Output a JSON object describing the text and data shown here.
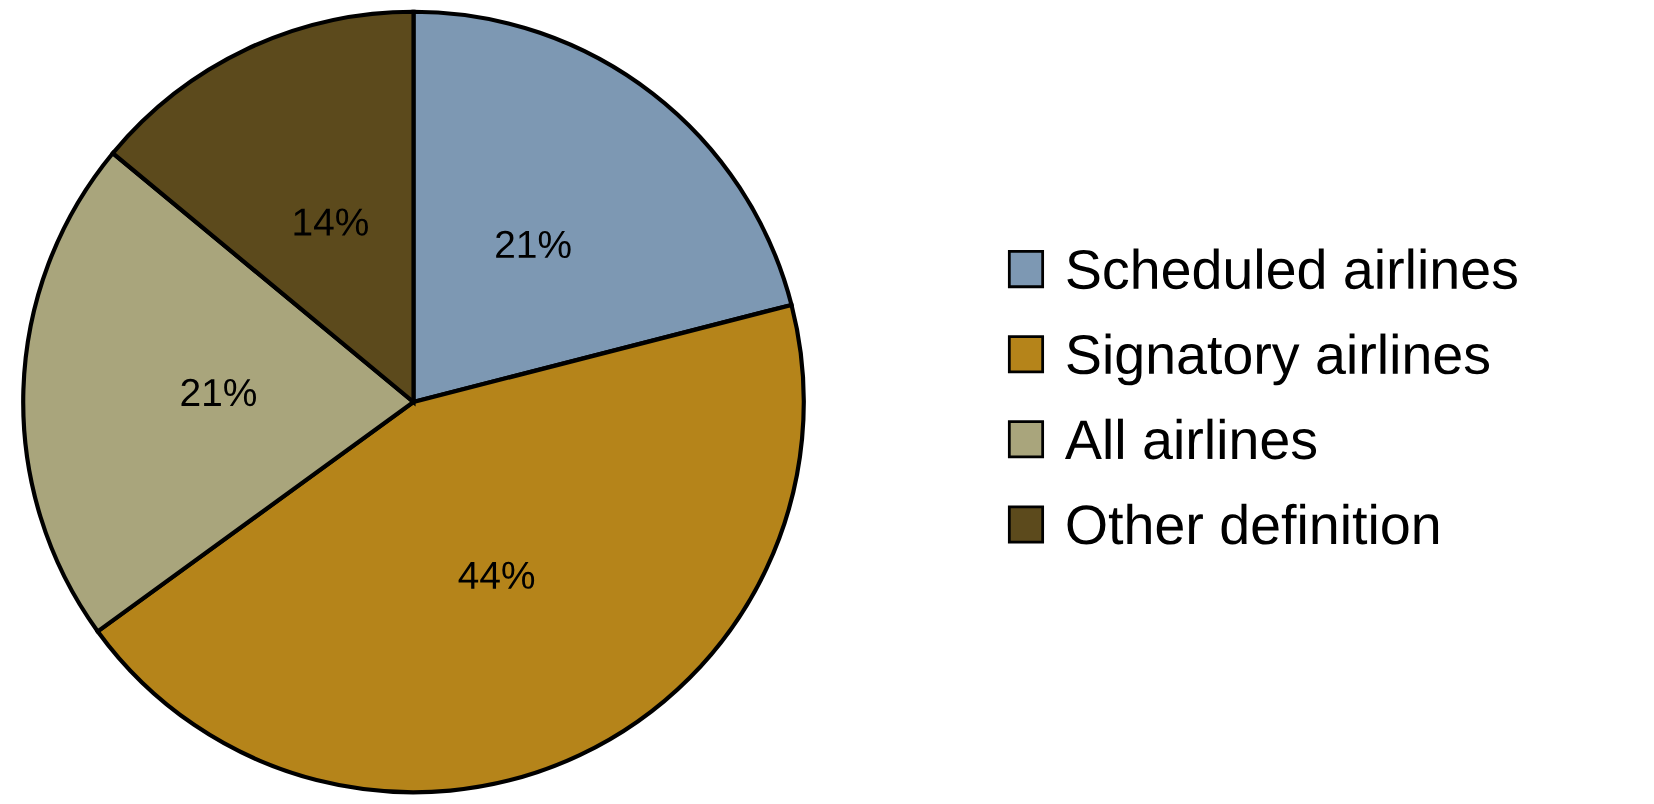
{
  "chart_data": {
    "type": "pie",
    "categories": [
      "Scheduled airlines",
      "Signatory airlines",
      "All airlines",
      "Other definition"
    ],
    "values": [
      21,
      44,
      21,
      14
    ],
    "value_labels": [
      "21%",
      "44%",
      "21%",
      "14%"
    ],
    "colors": [
      "#7d98b3",
      "#b5841a",
      "#a9a57c",
      "#5c4a1c"
    ],
    "legend": "right"
  }
}
